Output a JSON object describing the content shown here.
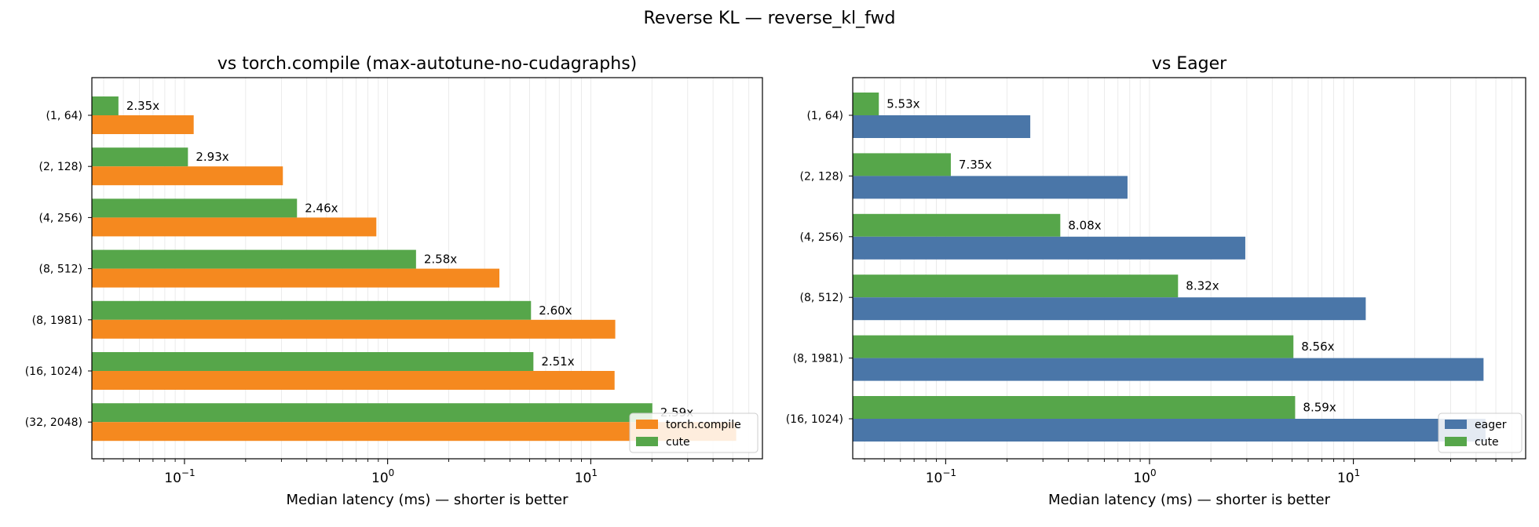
{
  "figure": {
    "title": "Reverse KL — reverse_kl_fwd"
  },
  "chart_data": [
    {
      "type": "bar",
      "orientation": "horizontal",
      "title": "vs torch.compile (max-autotune-no-cudagraphs)",
      "xlabel": "Median latency (ms) — shorter is better",
      "ylabel": "",
      "xscale": "log",
      "xlim": [
        0.035,
        70
      ],
      "xticks": [
        {
          "value": 0.1,
          "base": "10",
          "exp": "−1"
        },
        {
          "value": 1,
          "base": "10",
          "exp": "0"
        },
        {
          "value": 10,
          "base": "10",
          "exp": "1"
        }
      ],
      "grid": "x-minor",
      "legend_position": "lower-right",
      "categories": [
        "(1, 64)",
        "(2, 128)",
        "(4, 256)",
        "(8, 512)",
        "(8, 1981)",
        "(16, 1024)",
        "(32, 2048)"
      ],
      "series": [
        {
          "name": "torch.compile",
          "color": "#f5891f",
          "values": [
            0.111,
            0.305,
            0.88,
            3.55,
            13.2,
            13.1,
            52.0
          ]
        },
        {
          "name": "cute",
          "color": "#56a64a",
          "values": [
            0.0473,
            0.104,
            0.358,
            1.38,
            5.08,
            5.22,
            20.1
          ]
        }
      ],
      "speedup_labels": [
        "2.35x",
        "2.93x",
        "2.46x",
        "2.58x",
        "2.60x",
        "2.51x",
        "2.59x"
      ]
    },
    {
      "type": "bar",
      "orientation": "horizontal",
      "title": "vs Eager",
      "xlabel": "Median latency (ms) — shorter is better",
      "ylabel": "",
      "xscale": "log",
      "xlim": [
        0.035,
        70
      ],
      "xticks": [
        {
          "value": 0.1,
          "base": "10",
          "exp": "−1"
        },
        {
          "value": 1,
          "base": "10",
          "exp": "0"
        },
        {
          "value": 10,
          "base": "10",
          "exp": "1"
        }
      ],
      "grid": "x-minor",
      "legend_position": "lower-right",
      "categories": [
        "(1, 64)",
        "(2, 128)",
        "(4, 256)",
        "(8, 512)",
        "(8, 1981)",
        "(16, 1024)"
      ],
      "series": [
        {
          "name": "eager",
          "color": "#4a76a8",
          "values": [
            0.26,
            0.78,
            2.95,
            11.5,
            43.5,
            44.5
          ]
        },
        {
          "name": "cute",
          "color": "#56a64a",
          "values": [
            0.047,
            0.106,
            0.365,
            1.38,
            5.08,
            5.18
          ]
        }
      ],
      "speedup_labels": [
        "5.53x",
        "7.35x",
        "8.08x",
        "8.32x",
        "8.56x",
        "8.59x"
      ]
    }
  ]
}
